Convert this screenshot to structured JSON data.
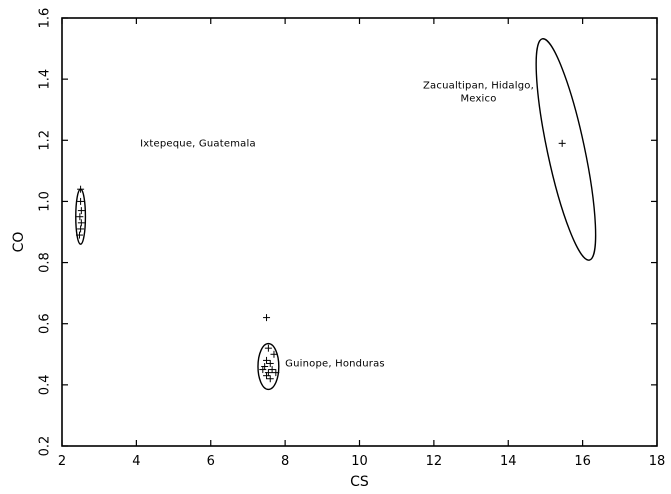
{
  "chart_data": {
    "type": "scatter",
    "title": "",
    "xlabel": "CS",
    "ylabel": "CO",
    "xlim": [
      2,
      18
    ],
    "ylim": [
      0.2,
      1.6
    ],
    "xticks": [
      2,
      4,
      6,
      8,
      10,
      12,
      14,
      16,
      18
    ],
    "yticks": [
      0.2,
      0.4,
      0.6,
      0.8,
      1.0,
      1.2,
      1.4,
      1.6
    ],
    "ytick_labels": [
      "0.2",
      "0.4",
      "0.6",
      "0.8",
      "1.0",
      "1.2",
      "1.4",
      "1.6"
    ],
    "grid": false,
    "marker": "+",
    "groups": [
      {
        "label": "Ixtepeque, Guatemala",
        "ellipse": {
          "cx": 2.5,
          "cy": 0.95,
          "rx": 0.13,
          "ry": 0.09,
          "rotation_deg": 0
        },
        "points": [
          {
            "x": 2.5,
            "y": 1.04
          },
          {
            "x": 2.5,
            "y": 1.0
          },
          {
            "x": 2.52,
            "y": 0.97
          },
          {
            "x": 2.48,
            "y": 0.95
          },
          {
            "x": 2.52,
            "y": 0.93
          },
          {
            "x": 2.5,
            "y": 0.91
          },
          {
            "x": 2.47,
            "y": 0.89
          }
        ]
      },
      {
        "label": "Guinope, Honduras",
        "ellipse": {
          "cx": 7.55,
          "cy": 0.46,
          "rx": 0.28,
          "ry": 0.075,
          "rotation_deg": 0
        },
        "points": [
          {
            "x": 7.5,
            "y": 0.62
          },
          {
            "x": 7.55,
            "y": 0.52
          },
          {
            "x": 7.7,
            "y": 0.5
          },
          {
            "x": 7.5,
            "y": 0.48
          },
          {
            "x": 7.6,
            "y": 0.47
          },
          {
            "x": 7.45,
            "y": 0.46
          },
          {
            "x": 7.65,
            "y": 0.45
          },
          {
            "x": 7.55,
            "y": 0.44
          },
          {
            "x": 7.4,
            "y": 0.45
          },
          {
            "x": 7.75,
            "y": 0.44
          },
          {
            "x": 7.5,
            "y": 0.43
          },
          {
            "x": 7.6,
            "y": 0.42
          }
        ]
      },
      {
        "label": "Zacualtipan, Hidalgo, Mexico",
        "label_lines": [
          "Zacualtipan, Hidalgo,",
          "Mexico"
        ],
        "ellipse": {
          "cx": 15.55,
          "cy": 1.17,
          "rx": 0.5,
          "ry": 0.37,
          "rotation_deg": -12
        },
        "points": [
          {
            "x": 15.45,
            "y": 1.19
          }
        ]
      }
    ]
  }
}
